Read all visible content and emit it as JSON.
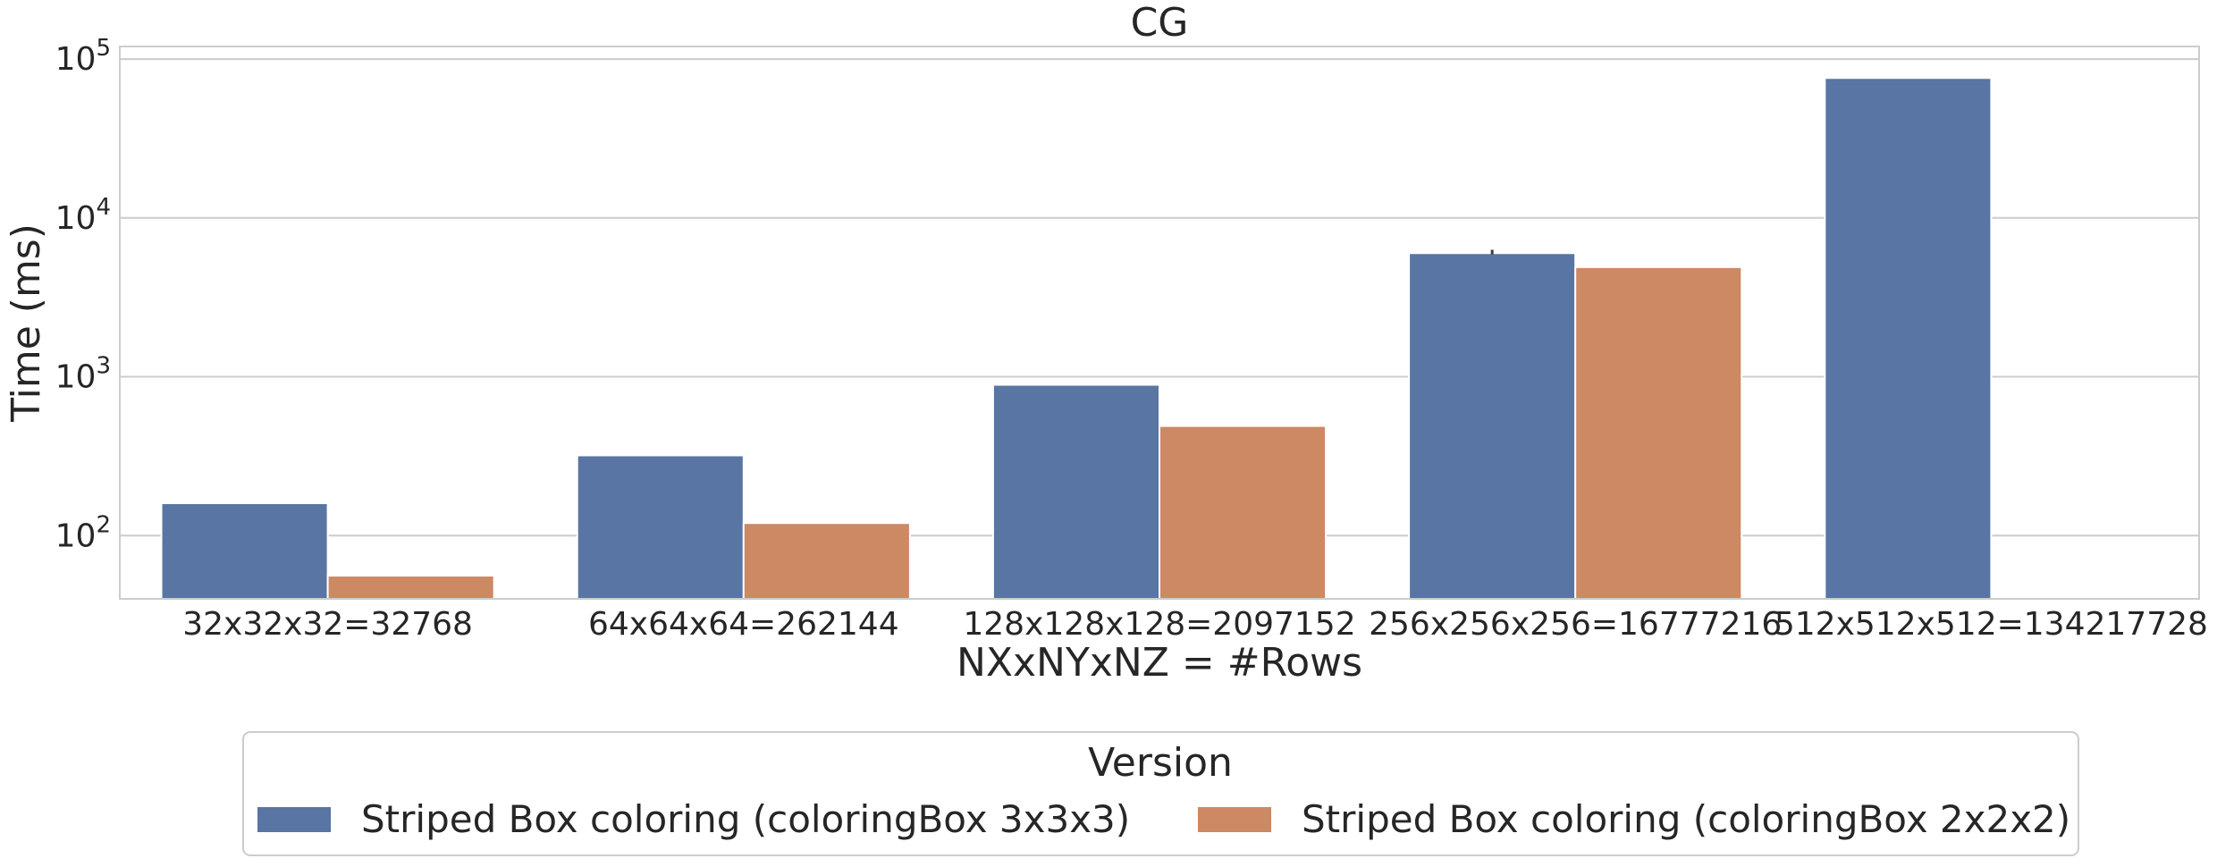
{
  "chart_data": {
    "type": "bar",
    "title": "CG",
    "xlabel": "NXxNYxNZ = #Rows",
    "ylabel": "Time (ms)",
    "yscale": "log",
    "ylim": [
      40,
      120000
    ],
    "yticks": [
      100,
      1000,
      10000,
      100000
    ],
    "ytick_labels": [
      {
        "base": "10",
        "exp": "2"
      },
      {
        "base": "10",
        "exp": "3"
      },
      {
        "base": "10",
        "exp": "4"
      },
      {
        "base": "10",
        "exp": "5"
      }
    ],
    "categories": [
      "32x32x32=32768",
      "64x64x64=262144",
      "128x128x128=2097152",
      "256x256x256=16777216",
      "512x512x512=134217728"
    ],
    "series": [
      {
        "name": "Striped Box coloring (coloringBox 3x3x3)",
        "color": "#5875a4",
        "values": [
          160,
          320,
          890,
          6000,
          76000
        ]
      },
      {
        "name": "Striped Box coloring (coloringBox 2x2x2)",
        "color": "#cc8963",
        "values": [
          56,
          120,
          490,
          4900,
          null
        ]
      }
    ],
    "error_bars": [
      {
        "series": 0,
        "category": 3,
        "low": 5900,
        "high": 6300
      }
    ],
    "grid": true,
    "legend": {
      "title": "Version",
      "placement": "bottom-center"
    }
  }
}
